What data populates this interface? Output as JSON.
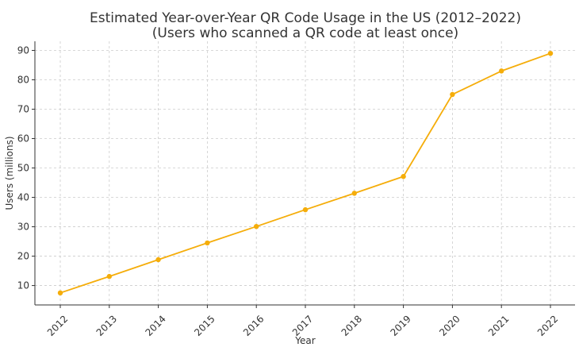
{
  "chart_data": {
    "type": "line",
    "title": "Estimated Year-over-Year QR Code Usage in the US (2012–2022)",
    "subtitle": "(Users who scanned a QR code at least once)",
    "xlabel": "Year",
    "ylabel": "Users (millions)",
    "x": [
      "2012",
      "2013",
      "2014",
      "2015",
      "2016",
      "2017",
      "2018",
      "2019",
      "2020",
      "2021",
      "2022"
    ],
    "y_ticks": [
      "10",
      "20",
      "30",
      "40",
      "50",
      "60",
      "70",
      "80",
      "90"
    ],
    "ylim": [
      3.4,
      93.1
    ],
    "grid": true,
    "series": [
      {
        "values": [
          7.5,
          13.1,
          18.8,
          24.5,
          30.1,
          35.8,
          41.4,
          47.1,
          75.0,
          83.0,
          89.0
        ],
        "color": "#F5AD0A"
      }
    ]
  }
}
